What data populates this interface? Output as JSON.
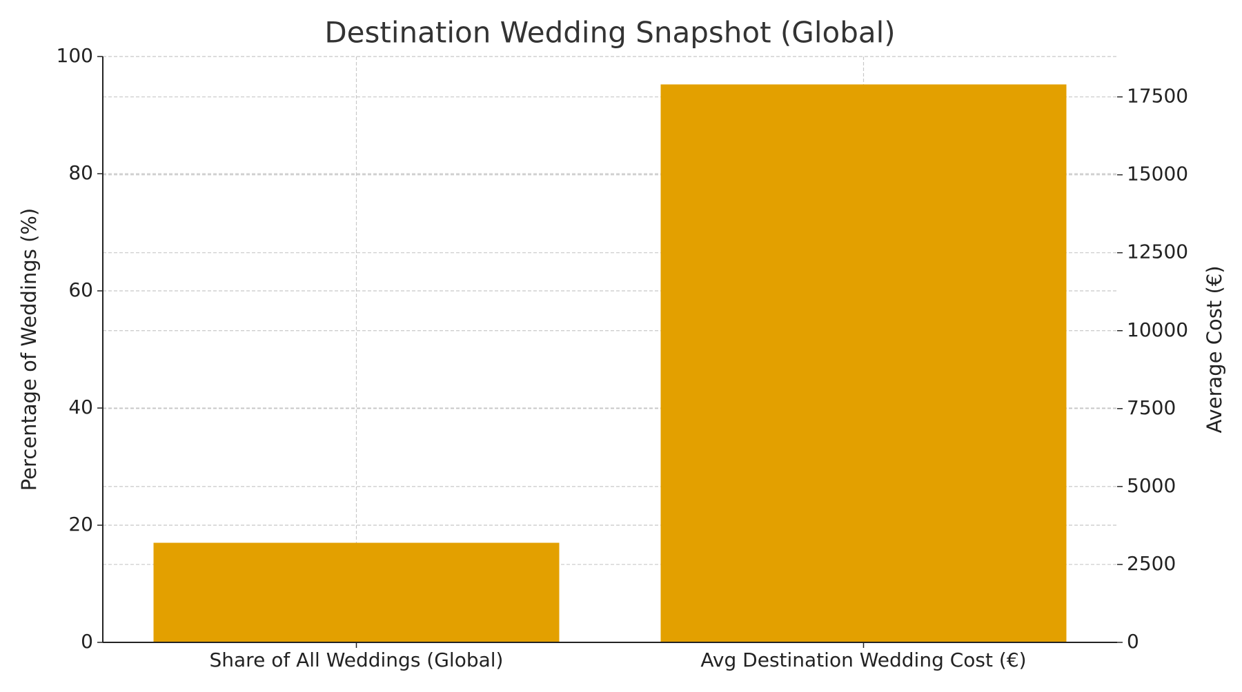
{
  "chart_data": {
    "type": "bar",
    "title": "Destination Wedding Snapshot (Global)",
    "categories": [
      "Share of All Weddings (Global)",
      "Avg Destination Wedding Cost (€)"
    ],
    "series": [
      {
        "color": "#e3a000",
        "values": [
          17,
          null
        ]
      },
      {
        "color": "#e3a000",
        "values": [
          null,
          17900
        ],
        "axis": "y2"
      }
    ],
    "ylabel": "Percentage of Weddings (%)",
    "y2label": "Average Cost (€)",
    "ylim": [
      0,
      100
    ],
    "yticks": [
      0,
      20,
      40,
      60,
      80,
      100
    ],
    "y2lim": [
      0,
      18795
    ],
    "y2ticks": [
      0,
      2500,
      5000,
      7500,
      10000,
      12500,
      15000,
      17500
    ],
    "grid": true
  }
}
